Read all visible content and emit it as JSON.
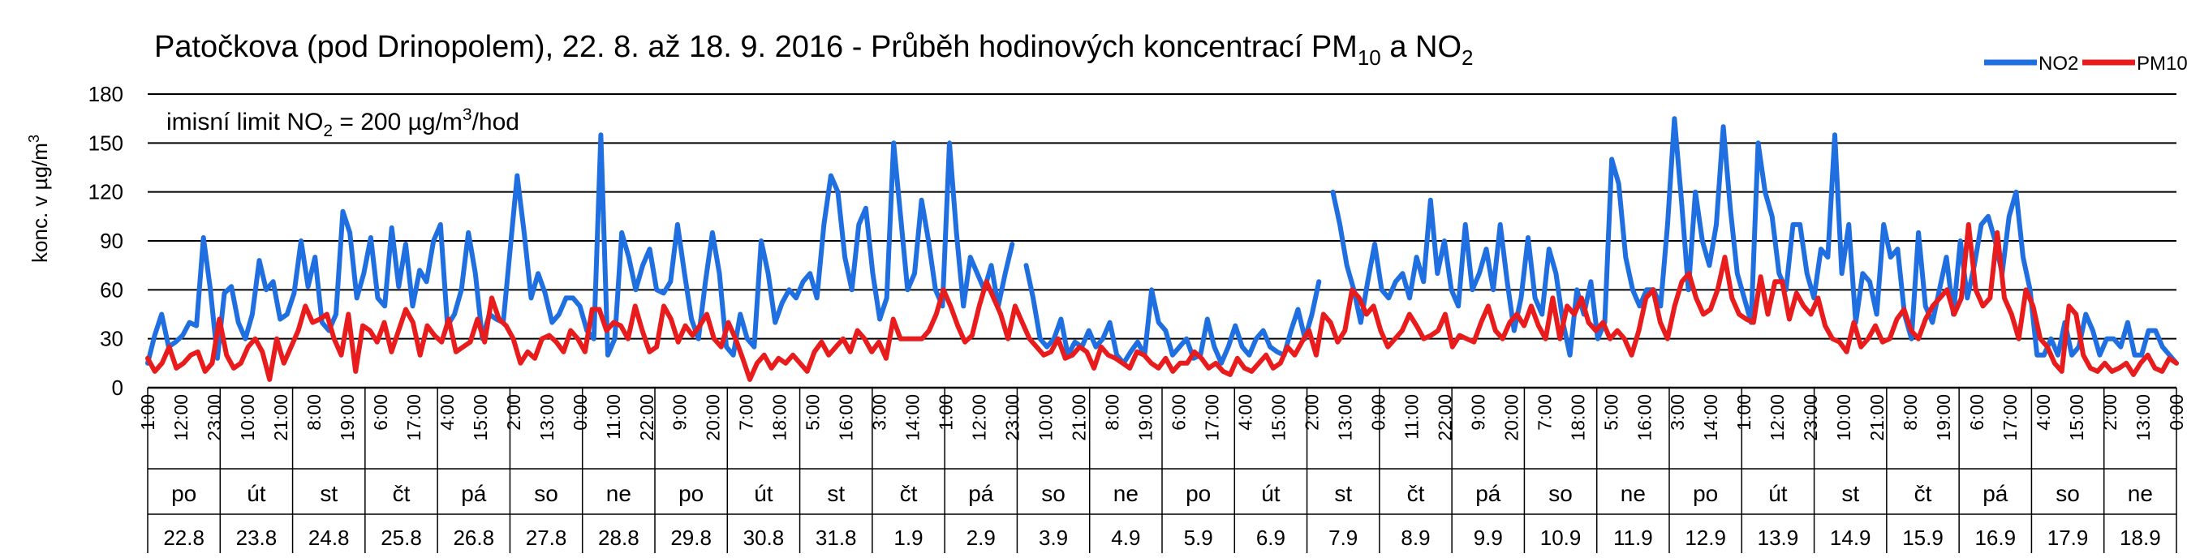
{
  "chart_data": {
    "type": "line",
    "title": "Patočkova (pod Drinopolem), 22. 8. až 18. 9. 2016 - Průběh hodinových koncentrací PM",
    "title_sub1": "10",
    "title_mid": " a NO",
    "title_sub2": "2",
    "ylabel": "konc. v µg/m",
    "ylabel_sup": "3",
    "ylim": [
      0,
      180
    ],
    "yticks": [
      0,
      30,
      60,
      90,
      120,
      150,
      180
    ],
    "grid": true,
    "legend_position": "top-right",
    "annotation": {
      "pre": "imisní limit NO",
      "sub": "2",
      "mid": " = 200 µg/m",
      "sup": "3",
      "post": "/hod"
    },
    "x_hour_labels": [
      "1:00",
      "12:00",
      "23:00",
      "10:00",
      "21:00",
      "8:00",
      "19:00",
      "6:00",
      "17:00",
      "4:00",
      "15:00",
      "2:00",
      "13:00",
      "0:00",
      "11:00",
      "22:00",
      "9:00",
      "20:00",
      "7:00",
      "18:00",
      "5:00",
      "16:00",
      "3:00",
      "14:00",
      "1:00",
      "12:00",
      "23:00",
      "10:00",
      "21:00",
      "8:00",
      "19:00",
      "6:00",
      "17:00",
      "4:00",
      "15:00",
      "2:00",
      "13:00",
      "0:00",
      "11:00",
      "22:00",
      "9:00",
      "20:00",
      "7:00",
      "18:00",
      "5:00",
      "16:00",
      "3:00",
      "14:00",
      "1:00",
      "12:00",
      "23:00",
      "10:00",
      "21:00",
      "8:00",
      "19:00",
      "6:00",
      "17:00",
      "4:00",
      "15:00",
      "2:00",
      "13:00",
      "0:00"
    ],
    "days": [
      {
        "dow": "po",
        "date": "22.8"
      },
      {
        "dow": "út",
        "date": "23.8"
      },
      {
        "dow": "st",
        "date": "24.8"
      },
      {
        "dow": "čt",
        "date": "25.8"
      },
      {
        "dow": "pá",
        "date": "26.8"
      },
      {
        "dow": "so",
        "date": "27.8"
      },
      {
        "dow": "ne",
        "date": "28.8"
      },
      {
        "dow": "po",
        "date": "29.8"
      },
      {
        "dow": "út",
        "date": "30.8"
      },
      {
        "dow": "st",
        "date": "31.8"
      },
      {
        "dow": "čt",
        "date": "1.9"
      },
      {
        "dow": "pá",
        "date": "2.9"
      },
      {
        "dow": "so",
        "date": "3.9"
      },
      {
        "dow": "ne",
        "date": "4.9"
      },
      {
        "dow": "po",
        "date": "5.9"
      },
      {
        "dow": "út",
        "date": "6.9"
      },
      {
        "dow": "st",
        "date": "7.9"
      },
      {
        "dow": "čt",
        "date": "8.9"
      },
      {
        "dow": "pá",
        "date": "9.9"
      },
      {
        "dow": "so",
        "date": "10.9"
      },
      {
        "dow": "ne",
        "date": "11.9"
      },
      {
        "dow": "po",
        "date": "12.9"
      },
      {
        "dow": "út",
        "date": "13.9"
      },
      {
        "dow": "st",
        "date": "14.9"
      },
      {
        "dow": "čt",
        "date": "15.9"
      },
      {
        "dow": "pá",
        "date": "16.9"
      },
      {
        "dow": "so",
        "date": "17.9"
      },
      {
        "dow": "ne",
        "date": "18.9"
      }
    ],
    "series": [
      {
        "name": "NO2",
        "color": "#1f6fe0",
        "values": [
          15,
          32,
          45,
          25,
          28,
          32,
          40,
          38,
          92,
          60,
          18,
          58,
          62,
          40,
          30,
          45,
          78,
          60,
          65,
          42,
          45,
          58,
          90,
          62,
          80,
          40,
          35,
          45,
          108,
          95,
          55,
          70,
          92,
          55,
          50,
          98,
          62,
          88,
          50,
          72,
          65,
          90,
          100,
          38,
          45,
          60,
          95,
          70,
          30,
          45,
          42,
          40,
          85,
          130,
          95,
          55,
          70,
          58,
          40,
          45,
          55,
          55,
          50,
          35,
          30,
          155,
          20,
          30,
          95,
          80,
          60,
          75,
          85,
          60,
          58,
          65,
          100,
          70,
          42,
          30,
          65,
          95,
          70,
          25,
          20,
          45,
          30,
          25,
          90,
          70,
          40,
          52,
          60,
          55,
          65,
          70,
          55,
          100,
          130,
          120,
          80,
          60,
          100,
          110,
          70,
          42,
          55,
          150,
          105,
          60,
          70,
          115,
          90,
          60,
          50,
          150,
          95,
          50,
          80,
          70,
          60,
          75,
          50,
          70,
          88,
          null,
          75,
          55,
          30,
          25,
          30,
          42,
          20,
          28,
          25,
          35,
          25,
          30,
          40,
          20,
          15,
          22,
          28,
          20,
          60,
          40,
          35,
          20,
          25,
          30,
          18,
          20,
          42,
          25,
          15,
          25,
          38,
          25,
          20,
          30,
          35,
          25,
          22,
          20,
          35,
          48,
          30,
          45,
          65,
          null,
          120,
          100,
          75,
          60,
          40,
          65,
          88,
          60,
          55,
          65,
          70,
          55,
          80,
          65,
          115,
          70,
          90,
          60,
          50,
          100,
          60,
          70,
          85,
          60,
          100,
          65,
          35,
          55,
          92,
          55,
          45,
          85,
          70,
          40,
          20,
          60,
          45,
          65,
          30,
          40,
          140,
          125,
          80,
          60,
          50,
          60,
          60,
          50,
          100,
          165,
          115,
          60,
          120,
          90,
          75,
          100,
          160,
          110,
          70,
          55,
          40,
          150,
          120,
          105,
          70,
          60,
          100,
          100,
          70,
          55,
          85,
          80,
          155,
          70,
          100,
          40,
          70,
          65,
          45,
          100,
          80,
          85,
          45,
          30,
          95,
          50,
          40,
          60,
          80,
          45,
          90,
          55,
          75,
          100,
          105,
          90,
          70,
          105,
          120,
          80,
          60,
          20,
          20,
          30,
          20,
          40,
          20,
          25,
          45,
          35,
          20,
          30,
          30,
          25,
          40,
          20,
          20,
          35,
          35,
          25,
          20,
          15
        ]
      },
      {
        "name": "PM10",
        "color": "#e81c1c",
        "values": [
          18,
          10,
          15,
          25,
          12,
          15,
          20,
          22,
          10,
          15,
          42,
          20,
          12,
          15,
          25,
          30,
          22,
          5,
          30,
          15,
          25,
          35,
          50,
          40,
          42,
          45,
          30,
          20,
          45,
          10,
          38,
          35,
          28,
          40,
          22,
          35,
          48,
          40,
          20,
          38,
          32,
          28,
          42,
          22,
          25,
          28,
          42,
          28,
          55,
          42,
          38,
          30,
          15,
          22,
          18,
          30,
          32,
          28,
          22,
          35,
          30,
          22,
          48,
          48,
          35,
          40,
          38,
          30,
          50,
          35,
          22,
          25,
          50,
          42,
          28,
          38,
          32,
          38,
          45,
          30,
          25,
          40,
          30,
          18,
          5,
          15,
          20,
          12,
          18,
          15,
          20,
          15,
          10,
          22,
          28,
          20,
          25,
          30,
          22,
          35,
          30,
          22,
          28,
          18,
          42,
          30,
          30,
          30,
          30,
          35,
          45,
          60,
          50,
          38,
          28,
          32,
          50,
          65,
          55,
          45,
          30,
          50,
          40,
          30,
          25,
          20,
          22,
          30,
          18,
          20,
          25,
          22,
          12,
          25,
          20,
          18,
          15,
          12,
          22,
          20,
          15,
          12,
          18,
          10,
          15,
          15,
          22,
          18,
          12,
          15,
          10,
          8,
          18,
          12,
          10,
          15,
          20,
          12,
          15,
          25,
          20,
          28,
          35,
          20,
          45,
          40,
          28,
          35,
          60,
          55,
          45,
          50,
          35,
          25,
          30,
          35,
          45,
          38,
          30,
          32,
          35,
          45,
          25,
          32,
          30,
          28,
          40,
          50,
          35,
          30,
          40,
          45,
          38,
          50,
          38,
          30,
          55,
          30,
          50,
          45,
          55,
          40,
          35,
          40,
          30,
          35,
          30,
          20,
          35,
          55,
          60,
          40,
          30,
          50,
          65,
          70,
          55,
          45,
          48,
          60,
          80,
          55,
          45,
          42,
          40,
          68,
          45,
          65,
          65,
          42,
          58,
          50,
          45,
          55,
          38,
          30,
          28,
          22,
          40,
          25,
          30,
          38,
          28,
          30,
          42,
          48,
          35,
          30,
          42,
          50,
          55,
          60,
          45,
          55,
          100,
          60,
          50,
          55,
          95,
          55,
          45,
          30,
          60,
          50,
          30,
          25,
          15,
          10,
          50,
          45,
          20,
          12,
          10,
          15,
          10,
          12,
          15,
          8,
          15,
          20,
          12,
          10,
          18,
          15
        ]
      }
    ]
  }
}
